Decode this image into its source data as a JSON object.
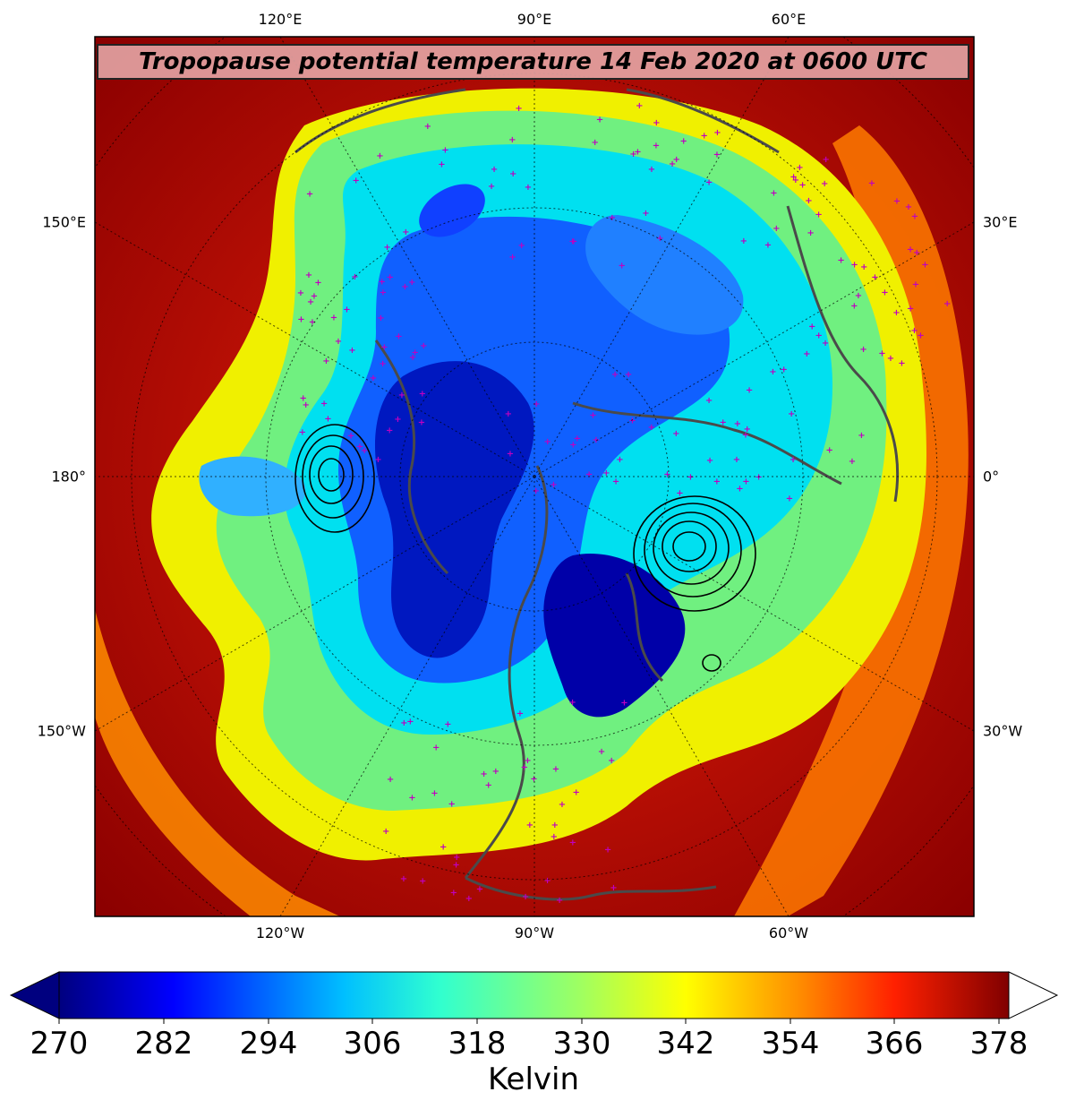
{
  "map": {
    "title": "Tropopause potential temperature 14 Feb 2020 at 0600 UTC",
    "projection": "north-polar-stereographic",
    "lon_labels_top": [
      "120°E",
      "90°E",
      "60°E"
    ],
    "lon_labels_bottom": [
      "120°W",
      "90°W",
      "60°W"
    ],
    "lat_labels_left": [
      "150°E",
      "180°",
      "150°W"
    ],
    "lat_labels_right": [
      "30°E",
      "0°",
      "30°W"
    ],
    "colors": {
      "background_outer": "#8b0000",
      "subtropical_red": "#e61e0a",
      "orange": "#ff8c00",
      "yellow": "#f0f000",
      "yellowgreen": "#a8f050",
      "green": "#50f0a0",
      "cyan": "#00d8ff",
      "blue": "#0050ff",
      "darkblue": "#0000b0",
      "coastline": "#4a4a4a",
      "station_marker": "#c000c0",
      "pressure_contour": "#000000"
    }
  },
  "colorbar": {
    "label": "Kelvin",
    "ticks": [
      "270",
      "282",
      "294",
      "306",
      "318",
      "330",
      "342",
      "354",
      "366",
      "378"
    ],
    "extend": "both"
  }
}
